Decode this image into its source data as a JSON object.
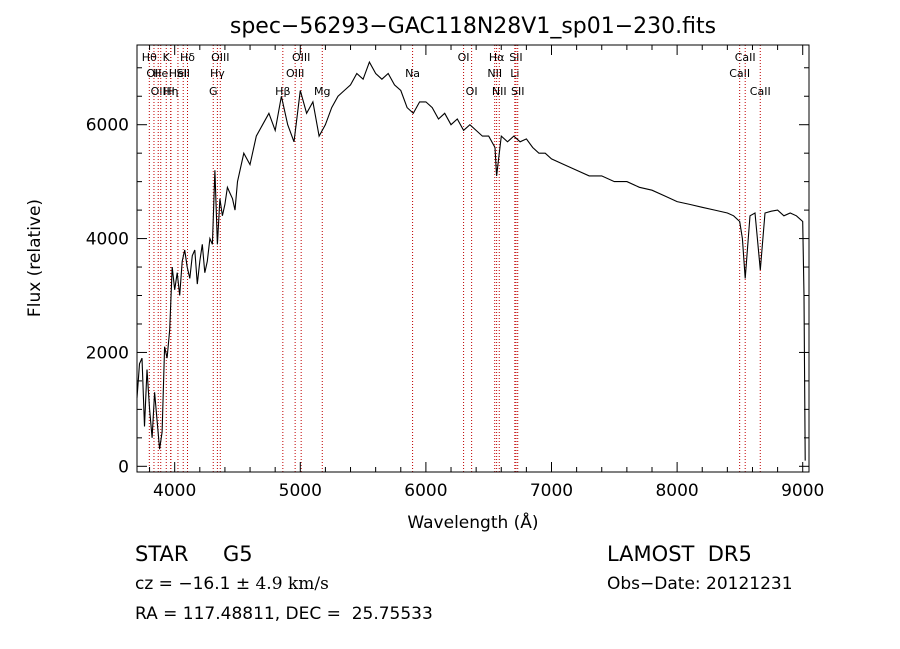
{
  "chart_data": {
    "type": "line",
    "title": "spec−56293−GAC118N28V1_sp01−230.fits",
    "xlabel": "Wavelength (Å)",
    "ylabel": "Flux (relative)",
    "xlim": [
      3700,
      9050
    ],
    "ylim": [
      -100,
      7400
    ],
    "x_ticks": [
      4000,
      5000,
      6000,
      7000,
      8000,
      9000
    ],
    "y_ticks": [
      0,
      2000,
      4000,
      6000
    ],
    "series": [
      {
        "x": [
          3700,
          3720,
          3740,
          3760,
          3780,
          3800,
          3820,
          3840,
          3860,
          3880,
          3900,
          3920,
          3940,
          3960,
          3980,
          4000,
          4020,
          4040,
          4060,
          4080,
          4100,
          4120,
          4140,
          4160,
          4180,
          4200,
          4220,
          4240,
          4260,
          4280,
          4300,
          4320,
          4340,
          4360,
          4380,
          4400,
          4420,
          4440,
          4460,
          4480,
          4500,
          4550,
          4600,
          4650,
          4700,
          4750,
          4800,
          4850,
          4900,
          4950,
          5000,
          5050,
          5100,
          5150,
          5200,
          5250,
          5300,
          5350,
          5400,
          5450,
          5500,
          5550,
          5600,
          5650,
          5700,
          5750,
          5800,
          5850,
          5900,
          5950,
          6000,
          6050,
          6100,
          6150,
          6200,
          6250,
          6300,
          6350,
          6400,
          6450,
          6500,
          6550,
          6563,
          6600,
          6650,
          6700,
          6750,
          6800,
          6850,
          6900,
          6950,
          7000,
          7100,
          7200,
          7300,
          7400,
          7500,
          7600,
          7700,
          7800,
          7900,
          8000,
          8100,
          8200,
          8300,
          8400,
          8450,
          8498,
          8520,
          8542,
          8580,
          8620,
          8662,
          8700,
          8750,
          8800,
          8850,
          8900,
          8950,
          9000,
          9010,
          9020
        ],
        "y": [
          1200,
          1800,
          1900,
          700,
          1700,
          1000,
          500,
          1300,
          800,
          300,
          600,
          2100,
          1900,
          2400,
          3500,
          3100,
          3400,
          3000,
          3600,
          3800,
          3500,
          3300,
          3700,
          3800,
          3200,
          3600,
          3900,
          3400,
          3600,
          4000,
          3900,
          5200,
          3900,
          4700,
          4400,
          4600,
          4900,
          4800,
          4700,
          4500,
          5000,
          5500,
          5300,
          5800,
          6000,
          6200,
          5900,
          6500,
          6000,
          5700,
          6600,
          6200,
          6400,
          5800,
          6000,
          6300,
          6500,
          6600,
          6700,
          6900,
          6800,
          7100,
          6900,
          6800,
          6900,
          6700,
          6600,
          6300,
          6200,
          6400,
          6400,
          6300,
          6100,
          6200,
          6000,
          6100,
          5900,
          6000,
          5900,
          5800,
          5800,
          5600,
          5100,
          5800,
          5700,
          5800,
          5700,
          5750,
          5600,
          5500,
          5500,
          5400,
          5300,
          5200,
          5100,
          5100,
          5000,
          5000,
          4900,
          4850,
          4750,
          4650,
          4600,
          4550,
          4500,
          4450,
          4400,
          4300,
          4000,
          3300,
          4400,
          4450,
          3450,
          4450,
          4480,
          4500,
          4400,
          4450,
          4400,
          4300,
          3000,
          100
        ]
      }
    ],
    "lines": [
      {
        "w": 3798,
        "label": "Hθ",
        "row": 1
      },
      {
        "w": 3835,
        "label": "OII",
        "row": 2
      },
      {
        "w": 3869,
        "label": "OII",
        "row": 3
      },
      {
        "w": 3889,
        "label": "He",
        "row": 2
      },
      {
        "w": 3933,
        "label": "K",
        "row": 1
      },
      {
        "w": 3968,
        "label": "H",
        "row": 3
      },
      {
        "w": 3970,
        "label": "Hη",
        "row": 3
      },
      {
        "w": 4026,
        "label": "HeI",
        "row": 2
      },
      {
        "w": 4068,
        "label": "SII",
        "row": 2
      },
      {
        "w": 4102,
        "label": "Hδ",
        "row": 1
      },
      {
        "w": 4307,
        "label": "G",
        "row": 3
      },
      {
        "w": 4340,
        "label": "Hγ",
        "row": 2
      },
      {
        "w": 4363,
        "label": "OIII",
        "row": 1
      },
      {
        "w": 4861,
        "label": "Hβ",
        "row": 3
      },
      {
        "w": 4959,
        "label": "OIII",
        "row": 2
      },
      {
        "w": 5007,
        "label": "OIII",
        "row": 1
      },
      {
        "w": 5175,
        "label": "Mg",
        "row": 3
      },
      {
        "w": 5894,
        "label": "Na",
        "row": 2
      },
      {
        "w": 6300,
        "label": "OI",
        "row": 1
      },
      {
        "w": 6364,
        "label": "OI",
        "row": 3
      },
      {
        "w": 6548,
        "label": "NII",
        "row": 2
      },
      {
        "w": 6563,
        "label": "Hα",
        "row": 1
      },
      {
        "w": 6584,
        "label": "NII",
        "row": 3
      },
      {
        "w": 6708,
        "label": "Li",
        "row": 2
      },
      {
        "w": 6717,
        "label": "SII",
        "row": 1
      },
      {
        "w": 6731,
        "label": "SII",
        "row": 3
      },
      {
        "w": 8498,
        "label": "CaII",
        "row": 2
      },
      {
        "w": 8542,
        "label": "CaII",
        "row": 1
      },
      {
        "w": 8662,
        "label": "CaII",
        "row": 3
      }
    ],
    "line_color": "#c00000"
  },
  "info": {
    "class": "STAR",
    "subclass": "G5",
    "survey": "LAMOST  DR5",
    "cz_prefix": "cz = −16.1 ± ",
    "cz_error": "4.9 km/s",
    "obs_date": "Obs−Date: 20121231",
    "radec": "RA = 117.48811, DEC =  25.75533"
  }
}
